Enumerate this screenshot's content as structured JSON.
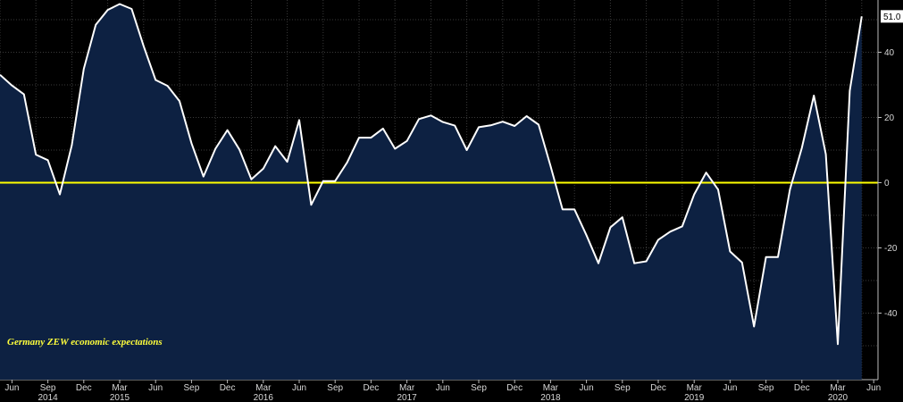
{
  "chart_data": {
    "type": "area",
    "title": "",
    "annotation": "Germany ZEW economic expectations",
    "series": [
      {
        "name": "Germany ZEW economic expectations",
        "color": "#ffffff",
        "fill": "#0d2142",
        "x": [
          "2014-05",
          "2014-06",
          "2014-07",
          "2014-08",
          "2014-09",
          "2014-10",
          "2014-11",
          "2014-12",
          "2015-01",
          "2015-02",
          "2015-03",
          "2015-04",
          "2015-05",
          "2015-06",
          "2015-07",
          "2015-08",
          "2015-09",
          "2015-10",
          "2015-11",
          "2015-12",
          "2016-01",
          "2016-02",
          "2016-03",
          "2016-04",
          "2016-05",
          "2016-06",
          "2016-07",
          "2016-08",
          "2016-09",
          "2016-10",
          "2016-11",
          "2016-12",
          "2017-01",
          "2017-02",
          "2017-03",
          "2017-04",
          "2017-05",
          "2017-06",
          "2017-07",
          "2017-08",
          "2017-09",
          "2017-10",
          "2017-11",
          "2017-12",
          "2018-01",
          "2018-02",
          "2018-03",
          "2018-04",
          "2018-05",
          "2018-06",
          "2018-07",
          "2018-08",
          "2018-09",
          "2018-10",
          "2018-11",
          "2018-12",
          "2019-01",
          "2019-02",
          "2019-03",
          "2019-04",
          "2019-05",
          "2019-06",
          "2019-07",
          "2019-08",
          "2019-09",
          "2019-10",
          "2019-11",
          "2019-12",
          "2020-01",
          "2020-02",
          "2020-03",
          "2020-04",
          "2020-05"
        ],
        "values": [
          33.1,
          29.8,
          27.1,
          8.6,
          6.9,
          -3.6,
          11.5,
          34.9,
          48.4,
          53.0,
          54.8,
          53.3,
          41.9,
          31.5,
          29.7,
          25.0,
          12.1,
          1.9,
          10.4,
          16.1,
          10.2,
          1.0,
          4.3,
          11.2,
          6.4,
          19.2,
          -6.8,
          0.5,
          0.5,
          6.2,
          13.8,
          13.8,
          16.6,
          10.4,
          12.8,
          19.5,
          20.6,
          18.6,
          17.5,
          10.0,
          17.0,
          17.6,
          18.7,
          17.4,
          20.4,
          17.8,
          5.1,
          -8.2,
          -8.2,
          -16.1,
          -24.7,
          -13.7,
          -10.6,
          -24.7,
          -24.1,
          -17.5,
          -15.0,
          -13.4,
          -3.6,
          3.1,
          -2.1,
          -21.1,
          -24.5,
          -44.1,
          -22.8,
          -22.8,
          -2.1,
          10.7,
          26.7,
          8.7,
          -49.5,
          28.2,
          51.0
        ]
      }
    ],
    "reference_line": {
      "value": 0,
      "color": "#ffff00"
    },
    "last_value_label": "51.0",
    "ylim": [
      -55,
      58
    ],
    "yticks": [
      40,
      20,
      0,
      -20,
      -40
    ],
    "xticks": [
      {
        "label": "Jun",
        "x": "2014-06"
      },
      {
        "label": "Sep",
        "x": "2014-09"
      },
      {
        "label": "Dec",
        "x": "2014-12"
      },
      {
        "label": "Mar",
        "x": "2015-03"
      },
      {
        "label": "Jun",
        "x": "2015-06"
      },
      {
        "label": "Sep",
        "x": "2015-09"
      },
      {
        "label": "Dec",
        "x": "2015-12"
      },
      {
        "label": "Mar",
        "x": "2016-03"
      },
      {
        "label": "Jun",
        "x": "2016-06"
      },
      {
        "label": "Sep",
        "x": "2016-09"
      },
      {
        "label": "Dec",
        "x": "2016-12"
      },
      {
        "label": "Mar",
        "x": "2017-03"
      },
      {
        "label": "Jun",
        "x": "2017-06"
      },
      {
        "label": "Sep",
        "x": "2017-09"
      },
      {
        "label": "Dec",
        "x": "2017-12"
      },
      {
        "label": "Mar",
        "x": "2018-03"
      },
      {
        "label": "Jun",
        "x": "2018-06"
      },
      {
        "label": "Sep",
        "x": "2018-09"
      },
      {
        "label": "Dec",
        "x": "2018-12"
      },
      {
        "label": "Mar",
        "x": "2019-03"
      },
      {
        "label": "Jun",
        "x": "2019-06"
      },
      {
        "label": "Sep",
        "x": "2019-09"
      },
      {
        "label": "Dec",
        "x": "2019-12"
      },
      {
        "label": "Mar",
        "x": "2020-03"
      },
      {
        "label": "Jun",
        "x": "2020-06"
      }
    ],
    "years": [
      {
        "label": "2014",
        "x": "2014-09"
      },
      {
        "label": "2015",
        "x": "2015-03"
      },
      {
        "label": "2016",
        "x": "2016-03"
      },
      {
        "label": "2017",
        "x": "2017-03"
      },
      {
        "label": "2018",
        "x": "2018-03"
      },
      {
        "label": "2019",
        "x": "2019-03"
      },
      {
        "label": "2020",
        "x": "2020-03"
      }
    ],
    "grid": true,
    "xlabel": "",
    "ylabel": ""
  }
}
